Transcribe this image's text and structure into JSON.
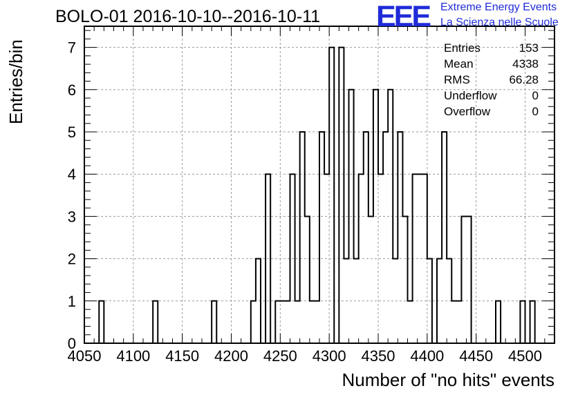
{
  "title": "BOLO-01 2016-10-10--2016-10-11",
  "logo": {
    "mark": "EEE",
    "line1": "Extreme Energy Events",
    "line2": "La Scienza nelle Scuole",
    "color": "#1f2bd8"
  },
  "stats": [
    {
      "label": "Entries",
      "value": "153"
    },
    {
      "label": "Mean",
      "value": "4338"
    },
    {
      "label": "RMS",
      "value": "66.28"
    },
    {
      "label": "Underflow",
      "value": "0"
    },
    {
      "label": "Overflow",
      "value": "0"
    }
  ],
  "chart_data": {
    "type": "histogram",
    "title": "BOLO-01 2016-10-10--2016-10-11",
    "xlabel": "Number of \"no hits\" events",
    "ylabel": "Entries/bin",
    "xlim": [
      4050,
      4530
    ],
    "ylim": [
      0,
      7.5
    ],
    "grid": true,
    "bin_width": 5,
    "x_ticks": [
      4050,
      4100,
      4150,
      4200,
      4250,
      4300,
      4350,
      4400,
      4450,
      4500
    ],
    "y_ticks": [
      0,
      1,
      2,
      3,
      4,
      5,
      6,
      7
    ],
    "line_color": "#000000",
    "bins": [
      {
        "low": 4050,
        "count": 0
      },
      {
        "low": 4065,
        "count": 1
      },
      {
        "low": 4070,
        "count": 0
      },
      {
        "low": 4120,
        "count": 1
      },
      {
        "low": 4125,
        "count": 0
      },
      {
        "low": 4180,
        "count": 1
      },
      {
        "low": 4185,
        "count": 0
      },
      {
        "low": 4220,
        "count": 1
      },
      {
        "low": 4225,
        "count": 2
      },
      {
        "low": 4230,
        "count": 0
      },
      {
        "low": 4235,
        "count": 4
      },
      {
        "low": 4240,
        "count": 0
      },
      {
        "low": 4245,
        "count": 1
      },
      {
        "low": 4260,
        "count": 4
      },
      {
        "low": 4265,
        "count": 1
      },
      {
        "low": 4270,
        "count": 5
      },
      {
        "low": 4275,
        "count": 3
      },
      {
        "low": 4280,
        "count": 1
      },
      {
        "low": 4290,
        "count": 5
      },
      {
        "low": 4295,
        "count": 4
      },
      {
        "low": 4300,
        "count": 7
      },
      {
        "low": 4305,
        "count": 0
      },
      {
        "low": 4310,
        "count": 7
      },
      {
        "low": 4315,
        "count": 2
      },
      {
        "low": 4320,
        "count": 6
      },
      {
        "low": 4325,
        "count": 2
      },
      {
        "low": 4330,
        "count": 4
      },
      {
        "low": 4335,
        "count": 5
      },
      {
        "low": 4340,
        "count": 3
      },
      {
        "low": 4345,
        "count": 6
      },
      {
        "low": 4350,
        "count": 4
      },
      {
        "low": 4355,
        "count": 5
      },
      {
        "low": 4360,
        "count": 6
      },
      {
        "low": 4365,
        "count": 2
      },
      {
        "low": 4370,
        "count": 5
      },
      {
        "low": 4375,
        "count": 3
      },
      {
        "low": 4380,
        "count": 1
      },
      {
        "low": 4385,
        "count": 4
      },
      {
        "low": 4400,
        "count": 2
      },
      {
        "low": 4405,
        "count": 0
      },
      {
        "low": 4410,
        "count": 2
      },
      {
        "low": 4415,
        "count": 5
      },
      {
        "low": 4420,
        "count": 2
      },
      {
        "low": 4425,
        "count": 1
      },
      {
        "low": 4435,
        "count": 3
      },
      {
        "low": 4445,
        "count": 0
      },
      {
        "low": 4470,
        "count": 1
      },
      {
        "low": 4475,
        "count": 0
      },
      {
        "low": 4495,
        "count": 1
      },
      {
        "low": 4500,
        "count": 0
      },
      {
        "low": 4505,
        "count": 1
      },
      {
        "low": 4510,
        "count": 0
      }
    ]
  }
}
